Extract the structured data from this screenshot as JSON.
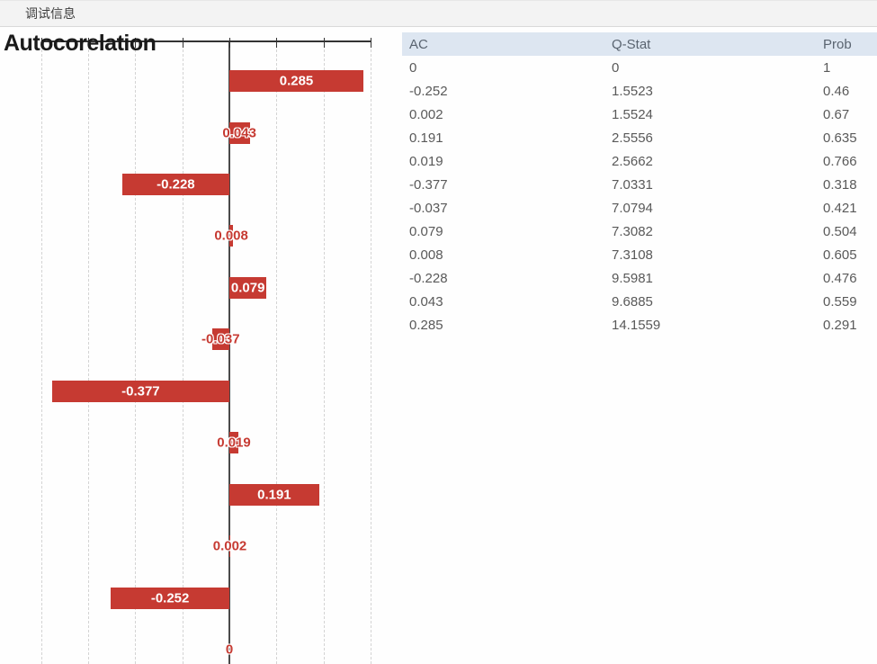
{
  "window": {
    "title": "调试信息"
  },
  "chart": {
    "title": "Autocorelation",
    "colors": {
      "bar": "#c63a32",
      "zero_line": "#4a4a4a",
      "axis": "#333333",
      "gridline": "#d4d4d4"
    }
  },
  "chart_data": {
    "type": "bar",
    "orientation": "horizontal",
    "title": "Autocorelation",
    "series": [
      {
        "name": "AC",
        "values": [
          0,
          -0.252,
          0.002,
          0.191,
          0.019,
          -0.377,
          -0.037,
          0.079,
          0.008,
          -0.228,
          0.043,
          0.285
        ]
      }
    ],
    "display_order_top_to_bottom": [
      0.285,
      0.043,
      -0.228,
      0.008,
      0.079,
      -0.037,
      -0.377,
      0.019,
      0.191,
      0.002,
      -0.252,
      0
    ],
    "bar_labels": [
      "0.285",
      "0.043",
      "-0.228",
      "0.008",
      "0.079",
      "-0.037",
      "-0.377",
      "0.019",
      "0.191",
      "0.002",
      "-0.252",
      "0"
    ],
    "xlim": [
      -0.42,
      0.31
    ],
    "grid_step": 0.1,
    "grid": "vertical dashed gridlines every 0.1, solid zero line",
    "legend": "none",
    "xlabel": "",
    "ylabel": ""
  },
  "table": {
    "columns": [
      "AC",
      "Q-Stat",
      "Prob"
    ],
    "rows": [
      [
        "0",
        "0",
        "1"
      ],
      [
        "-0.252",
        "1.5523",
        "0.46"
      ],
      [
        "0.002",
        "1.5524",
        "0.67"
      ],
      [
        "0.191",
        "2.5556",
        "0.635"
      ],
      [
        "0.019",
        "2.5662",
        "0.766"
      ],
      [
        "-0.377",
        "7.0331",
        "0.318"
      ],
      [
        "-0.037",
        "7.0794",
        "0.421"
      ],
      [
        "0.079",
        "7.3082",
        "0.504"
      ],
      [
        "0.008",
        "7.3108",
        "0.605"
      ],
      [
        "-0.228",
        "9.5981",
        "0.476"
      ],
      [
        "0.043",
        "9.6885",
        "0.559"
      ],
      [
        "0.285",
        "14.1559",
        "0.291"
      ]
    ]
  }
}
